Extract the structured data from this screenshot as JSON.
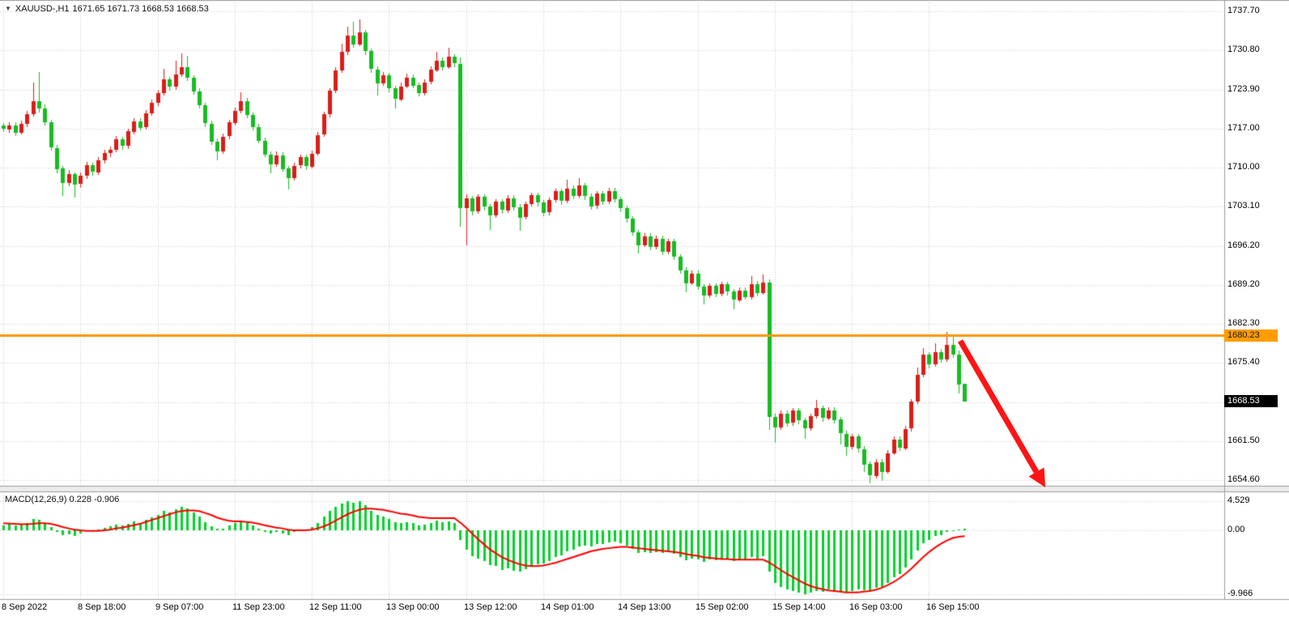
{
  "header": {
    "dropdown_icon": "▼",
    "symbol_timeframe": "XAUUSD-,H1",
    "ohlc_values": "1671.65 1671.73 1668.53 1668.53"
  },
  "chart_data": {
    "type": "candlestick",
    "symbol": "XAUUSD-",
    "timeframe": "H1",
    "title": "XAUUSD-,H1 1671.65 1671.73 1668.53 1668.53",
    "current_price": "1668.53",
    "price_axis": {
      "labels": [
        "1737.70",
        "1730.80",
        "1723.90",
        "1717.00",
        "1710.00",
        "1703.10",
        "1696.20",
        "1689.20",
        "1682.30",
        "1675.40",
        null,
        "1661.50",
        "1654.60"
      ],
      "max": 1739.7,
      "min": 1652.5,
      "step": 6.9
    },
    "time_axis": {
      "labels": [
        "8 Sep 2022",
        "8 Sep 18:00",
        "9 Sep 07:00",
        "11 Sep 23:00",
        "12 Sep 11:00",
        "13 Sep 00:00",
        "13 Sep 12:00",
        "14 Sep 01:00",
        "14 Sep 13:00",
        "15 Sep 02:00",
        "15 Sep 14:00",
        "16 Sep 03:00",
        "16 Sep 15:00"
      ]
    },
    "hline": {
      "price": 1680.23,
      "label": "1680.23",
      "color": "#ff9c00"
    },
    "colors": {
      "bull": "#d91e18",
      "bear": "#18bb22",
      "grid": "#c9c9c9",
      "border": "#9c9c9c",
      "separator": "#ececec",
      "badge_bg": "#000000"
    },
    "candles": [
      [
        1717.4,
        1717.9,
        1716.3,
        1716.8
      ],
      [
        1716.8,
        1718.1,
        1716.3,
        1717.5
      ],
      [
        1717.5,
        1718.0,
        1715.6,
        1716.2
      ],
      [
        1716.2,
        1718.3,
        1715.8,
        1717.8
      ],
      [
        1717.8,
        1720.1,
        1717.3,
        1719.5
      ],
      [
        1719.5,
        1725.0,
        1719.0,
        1721.8
      ],
      [
        1721.8,
        1727.0,
        1719.8,
        1720.5
      ],
      [
        1720.5,
        1721.2,
        1717.4,
        1718.0
      ],
      [
        1718.0,
        1718.5,
        1713.0,
        1713.5
      ],
      [
        1713.5,
        1714.0,
        1709.0,
        1709.8
      ],
      [
        1709.8,
        1710.3,
        1705.0,
        1707.2
      ],
      [
        1707.2,
        1709.5,
        1706.6,
        1708.8
      ],
      [
        1708.8,
        1709.2,
        1704.8,
        1707.0
      ],
      [
        1707.0,
        1709.1,
        1706.4,
        1708.5
      ],
      [
        1708.5,
        1711.0,
        1708.0,
        1710.4
      ],
      [
        1710.4,
        1710.9,
        1708.6,
        1709.2
      ],
      [
        1709.2,
        1711.9,
        1708.8,
        1711.3
      ],
      [
        1711.3,
        1713.2,
        1710.8,
        1712.6
      ],
      [
        1712.6,
        1713.8,
        1712.0,
        1713.2
      ],
      [
        1713.2,
        1715.6,
        1712.7,
        1715.0
      ],
      [
        1715.0,
        1715.5,
        1713.2,
        1713.8
      ],
      [
        1713.8,
        1716.9,
        1713.3,
        1716.4
      ],
      [
        1716.4,
        1718.8,
        1715.9,
        1718.2
      ],
      [
        1718.2,
        1718.7,
        1716.5,
        1717.1
      ],
      [
        1717.1,
        1720.2,
        1716.7,
        1719.6
      ],
      [
        1719.6,
        1722.0,
        1719.1,
        1721.5
      ],
      [
        1721.5,
        1723.8,
        1721.0,
        1723.2
      ],
      [
        1723.2,
        1727.5,
        1722.8,
        1725.6
      ],
      [
        1725.6,
        1726.1,
        1723.7,
        1724.3
      ],
      [
        1724.3,
        1729.0,
        1723.9,
        1726.5
      ],
      [
        1726.5,
        1730.2,
        1726.0,
        1727.8
      ],
      [
        1727.8,
        1729.8,
        1725.3,
        1725.9
      ],
      [
        1725.9,
        1726.4,
        1722.9,
        1723.5
      ],
      [
        1723.5,
        1724.0,
        1720.4,
        1721.0
      ],
      [
        1721.0,
        1721.5,
        1717.2,
        1717.8
      ],
      [
        1717.8,
        1718.3,
        1714.0,
        1714.6
      ],
      [
        1714.6,
        1715.1,
        1711.2,
        1712.9
      ],
      [
        1712.9,
        1716.0,
        1712.4,
        1715.5
      ],
      [
        1715.5,
        1718.5,
        1715.0,
        1718.0
      ],
      [
        1718.0,
        1720.6,
        1717.5,
        1720.1
      ],
      [
        1720.1,
        1723.4,
        1719.7,
        1721.8
      ],
      [
        1721.8,
        1722.3,
        1718.7,
        1719.3
      ],
      [
        1719.3,
        1719.8,
        1716.6,
        1717.2
      ],
      [
        1717.2,
        1717.7,
        1714.2,
        1714.8
      ],
      [
        1714.8,
        1715.3,
        1711.8,
        1712.3
      ],
      [
        1712.3,
        1712.8,
        1708.9,
        1710.6
      ],
      [
        1710.6,
        1712.8,
        1710.1,
        1712.2
      ],
      [
        1712.2,
        1712.7,
        1709.2,
        1709.8
      ],
      [
        1709.8,
        1710.3,
        1706.2,
        1708.1
      ],
      [
        1708.1,
        1710.8,
        1707.7,
        1710.3
      ],
      [
        1710.3,
        1712.3,
        1709.9,
        1711.8
      ],
      [
        1711.8,
        1712.3,
        1709.6,
        1710.2
      ],
      [
        1710.2,
        1713.0,
        1709.8,
        1712.5
      ],
      [
        1712.5,
        1716.3,
        1712.1,
        1715.8
      ],
      [
        1715.8,
        1719.9,
        1715.4,
        1719.4
      ],
      [
        1719.4,
        1724.1,
        1719.0,
        1723.6
      ],
      [
        1723.6,
        1727.8,
        1723.2,
        1727.2
      ],
      [
        1727.2,
        1732.0,
        1726.8,
        1730.5
      ],
      [
        1730.5,
        1735.0,
        1730.0,
        1733.4
      ],
      [
        1733.4,
        1735.8,
        1731.2,
        1731.8
      ],
      [
        1731.8,
        1736.2,
        1731.4,
        1733.9
      ],
      [
        1733.9,
        1734.4,
        1730.0,
        1730.6
      ],
      [
        1730.6,
        1731.1,
        1726.8,
        1727.4
      ],
      [
        1727.4,
        1727.9,
        1722.8,
        1724.9
      ],
      [
        1724.9,
        1726.9,
        1724.4,
        1726.3
      ],
      [
        1726.3,
        1726.8,
        1723.4,
        1724.0
      ],
      [
        1724.0,
        1724.5,
        1720.5,
        1722.1
      ],
      [
        1722.1,
        1725.0,
        1721.7,
        1724.4
      ],
      [
        1724.4,
        1726.6,
        1724.0,
        1726.0
      ],
      [
        1726.0,
        1726.5,
        1724.0,
        1724.6
      ],
      [
        1724.6,
        1725.1,
        1722.6,
        1723.2
      ],
      [
        1723.2,
        1725.7,
        1722.8,
        1725.1
      ],
      [
        1725.1,
        1727.9,
        1724.7,
        1727.3
      ],
      [
        1727.3,
        1730.5,
        1726.9,
        1729.0
      ],
      [
        1729.0,
        1729.5,
        1727.2,
        1727.8
      ],
      [
        1727.8,
        1731.2,
        1727.4,
        1729.6
      ],
      [
        1729.6,
        1730.1,
        1727.8,
        1728.4
      ],
      [
        1728.4,
        1729.5,
        1699.5,
        1702.8
      ],
      [
        1702.8,
        1705.2,
        1696.2,
        1704.5
      ],
      [
        1704.5,
        1705.0,
        1701.5,
        1702.2
      ],
      [
        1702.2,
        1705.3,
        1701.8,
        1704.8
      ],
      [
        1704.8,
        1705.3,
        1702.5,
        1703.1
      ],
      [
        1703.1,
        1703.6,
        1699.0,
        1701.5
      ],
      [
        1701.5,
        1704.4,
        1701.1,
        1703.9
      ],
      [
        1703.9,
        1704.4,
        1701.8,
        1702.4
      ],
      [
        1702.4,
        1705.1,
        1702.0,
        1704.6
      ],
      [
        1704.6,
        1705.1,
        1702.4,
        1703.0
      ],
      [
        1703.0,
        1703.5,
        1698.8,
        1701.2
      ],
      [
        1701.2,
        1704.0,
        1700.8,
        1703.5
      ],
      [
        1703.5,
        1705.6,
        1703.1,
        1705.1
      ],
      [
        1705.1,
        1705.6,
        1703.2,
        1703.8
      ],
      [
        1703.8,
        1704.3,
        1701.4,
        1702.0
      ],
      [
        1702.0,
        1704.7,
        1701.6,
        1704.2
      ],
      [
        1704.2,
        1706.3,
        1703.8,
        1705.8
      ],
      [
        1705.8,
        1706.3,
        1703.5,
        1704.1
      ],
      [
        1704.1,
        1707.8,
        1703.7,
        1706.3
      ],
      [
        1706.3,
        1706.8,
        1704.4,
        1705.0
      ],
      [
        1705.0,
        1708.2,
        1704.6,
        1706.8
      ],
      [
        1706.8,
        1707.3,
        1704.3,
        1704.9
      ],
      [
        1704.9,
        1705.4,
        1702.6,
        1703.2
      ],
      [
        1703.2,
        1705.9,
        1702.8,
        1705.4
      ],
      [
        1705.4,
        1705.9,
        1703.4,
        1704.0
      ],
      [
        1704.0,
        1706.4,
        1703.6,
        1705.9
      ],
      [
        1705.9,
        1706.4,
        1703.8,
        1704.4
      ],
      [
        1704.4,
        1704.9,
        1702.2,
        1702.8
      ],
      [
        1702.8,
        1703.3,
        1700.3,
        1700.9
      ],
      [
        1700.9,
        1701.4,
        1697.9,
        1698.5
      ],
      [
        1698.5,
        1699.0,
        1694.8,
        1696.2
      ],
      [
        1696.2,
        1698.3,
        1695.8,
        1697.8
      ],
      [
        1697.8,
        1698.3,
        1695.3,
        1695.9
      ],
      [
        1695.9,
        1697.9,
        1695.5,
        1697.4
      ],
      [
        1697.4,
        1697.9,
        1694.5,
        1695.1
      ],
      [
        1695.1,
        1697.4,
        1694.7,
        1696.9
      ],
      [
        1696.9,
        1697.4,
        1693.6,
        1694.2
      ],
      [
        1694.2,
        1694.7,
        1691.2,
        1691.8
      ],
      [
        1691.8,
        1692.3,
        1687.9,
        1689.5
      ],
      [
        1689.5,
        1691.7,
        1689.1,
        1691.2
      ],
      [
        1691.2,
        1691.7,
        1688.3,
        1688.9
      ],
      [
        1688.9,
        1689.4,
        1685.8,
        1687.3
      ],
      [
        1687.3,
        1689.5,
        1686.9,
        1689.0
      ],
      [
        1689.0,
        1689.5,
        1687.0,
        1687.6
      ],
      [
        1687.6,
        1689.8,
        1687.2,
        1689.3
      ],
      [
        1689.3,
        1689.8,
        1687.4,
        1688.0
      ],
      [
        1688.0,
        1688.5,
        1684.9,
        1686.5
      ],
      [
        1686.5,
        1688.7,
        1686.1,
        1688.2
      ],
      [
        1688.2,
        1688.7,
        1686.5,
        1687.1
      ],
      [
        1687.1,
        1690.8,
        1686.7,
        1689.4
      ],
      [
        1689.4,
        1689.9,
        1687.2,
        1687.8
      ],
      [
        1687.8,
        1691.0,
        1687.4,
        1689.6
      ],
      [
        1689.6,
        1690.2,
        1663.5,
        1665.8
      ],
      [
        1665.8,
        1666.3,
        1661.2,
        1663.9
      ],
      [
        1663.9,
        1667.0,
        1663.5,
        1666.4
      ],
      [
        1666.4,
        1666.9,
        1664.1,
        1664.7
      ],
      [
        1664.7,
        1667.4,
        1664.3,
        1666.9
      ],
      [
        1666.9,
        1667.4,
        1664.6,
        1665.2
      ],
      [
        1665.2,
        1665.7,
        1662.0,
        1663.8
      ],
      [
        1663.8,
        1666.4,
        1663.4,
        1665.9
      ],
      [
        1665.9,
        1668.8,
        1665.5,
        1667.3
      ],
      [
        1667.3,
        1667.8,
        1665.0,
        1665.6
      ],
      [
        1665.6,
        1667.5,
        1665.2,
        1667.0
      ],
      [
        1667.0,
        1667.5,
        1664.7,
        1665.3
      ],
      [
        1665.3,
        1665.8,
        1660.9,
        1662.8
      ],
      [
        1662.8,
        1663.3,
        1658.8,
        1660.5
      ],
      [
        1660.5,
        1662.8,
        1660.1,
        1662.3
      ],
      [
        1662.3,
        1662.8,
        1659.5,
        1660.1
      ],
      [
        1660.1,
        1660.6,
        1656.0,
        1657.4
      ],
      [
        1657.4,
        1657.9,
        1654.0,
        1655.4
      ],
      [
        1655.4,
        1658.3,
        1654.8,
        1657.8
      ],
      [
        1657.8,
        1658.3,
        1654.4,
        1656.1
      ],
      [
        1656.1,
        1659.9,
        1655.7,
        1659.4
      ],
      [
        1659.4,
        1662.3,
        1659.0,
        1661.8
      ],
      [
        1661.8,
        1662.3,
        1659.7,
        1660.3
      ],
      [
        1660.3,
        1664.2,
        1659.9,
        1663.7
      ],
      [
        1663.7,
        1669.0,
        1663.3,
        1668.5
      ],
      [
        1668.5,
        1674.5,
        1668.1,
        1673.2
      ],
      [
        1673.2,
        1678.0,
        1672.8,
        1676.8
      ],
      [
        1676.8,
        1677.3,
        1674.5,
        1675.1
      ],
      [
        1675.1,
        1678.9,
        1674.7,
        1677.3
      ],
      [
        1677.3,
        1677.8,
        1675.4,
        1676.0
      ],
      [
        1676.0,
        1680.9,
        1675.6,
        1678.6
      ],
      [
        1678.6,
        1680.2,
        1676.3,
        1676.9
      ],
      [
        1676.9,
        1677.5,
        1669.9,
        1671.65
      ],
      [
        1671.65,
        1671.73,
        1668.53,
        1668.53
      ]
    ],
    "macd": {
      "label": "MACD(12,26,9) 0.228 -0.906",
      "scale_labels": [
        "4.529",
        "0.00",
        "-9.966"
      ],
      "scale_values": [
        4.529,
        0,
        -9.966
      ],
      "hist_color": "#00d22a",
      "signal_color": "#ff0000",
      "histogram": [
        0.8,
        1.0,
        0.7,
        0.9,
        1.2,
        1.8,
        1.6,
        1.2,
        0.5,
        -0.2,
        -0.8,
        -0.6,
        -0.9,
        -0.5,
        -0.1,
        -0.3,
        0.1,
        0.4,
        0.6,
        0.9,
        0.7,
        1.0,
        1.4,
        1.2,
        1.6,
        2.0,
        2.4,
        3.0,
        2.8,
        3.3,
        3.7,
        3.4,
        2.8,
        2.1,
        1.3,
        0.6,
        0.2,
        0.3,
        0.7,
        1.1,
        1.4,
        1.1,
        0.7,
        0.2,
        -0.2,
        -0.5,
        -0.3,
        -0.5,
        -0.7,
        -0.3,
        0.0,
        0.1,
        0.5,
        1.2,
        2.1,
        3.0,
        3.7,
        4.2,
        4.5,
        4.3,
        4.529,
        3.9,
        3.1,
        2.4,
        2.2,
        1.8,
        1.3,
        1.2,
        1.3,
        1.1,
        0.8,
        0.9,
        1.2,
        1.5,
        1.3,
        1.4,
        1.1,
        -1.5,
        -3.0,
        -4.0,
        -4.4,
        -4.8,
        -5.4,
        -5.6,
        -6.2,
        -6.0,
        -6.3,
        -6.5,
        -6.1,
        -5.6,
        -5.3,
        -5.2,
        -4.8,
        -4.2,
        -3.9,
        -3.3,
        -3.0,
        -2.5,
        -2.4,
        -2.5,
        -2.2,
        -2.1,
        -1.9,
        -1.8,
        -2.0,
        -2.4,
        -2.9,
        -3.5,
        -3.4,
        -3.6,
        -3.4,
        -3.6,
        -3.4,
        -3.7,
        -4.2,
        -4.7,
        -4.4,
        -4.6,
        -4.9,
        -4.6,
        -4.7,
        -4.4,
        -4.5,
        -4.8,
        -4.5,
        -4.6,
        -4.2,
        -4.4,
        -4.1,
        -6.5,
        -8.2,
        -8.8,
        -9.3,
        -9.5,
        -9.7,
        -9.966,
        -9.8,
        -9.5,
        -9.6,
        -9.3,
        -9.4,
        -9.6,
        -9.8,
        -9.5,
        -9.2,
        -9.4,
        -9.6,
        -9.0,
        -8.8,
        -8.2,
        -7.4,
        -6.8,
        -5.8,
        -4.5,
        -3.2,
        -2.0,
        -1.5,
        -0.9,
        -0.7,
        -0.3,
        -0.1,
        0.1,
        0.228
      ],
      "signal": [
        1.1,
        1.05,
        1.0,
        0.95,
        0.95,
        1.0,
        1.1,
        1.1,
        1.0,
        0.8,
        0.5,
        0.3,
        0.1,
        0.0,
        -0.1,
        -0.1,
        -0.1,
        0.0,
        0.1,
        0.3,
        0.4,
        0.6,
        0.8,
        1.0,
        1.3,
        1.6,
        1.9,
        2.2,
        2.5,
        2.8,
        3.0,
        3.1,
        3.1,
        3.0,
        2.7,
        2.4,
        2.0,
        1.7,
        1.5,
        1.4,
        1.4,
        1.3,
        1.2,
        1.0,
        0.8,
        0.6,
        0.4,
        0.3,
        0.1,
        0.0,
        0.0,
        0.0,
        0.1,
        0.3,
        0.6,
        1.0,
        1.5,
        2.0,
        2.5,
        2.9,
        3.2,
        3.4,
        3.4,
        3.3,
        3.2,
        3.0,
        2.8,
        2.6,
        2.5,
        2.3,
        2.1,
        2.0,
        1.9,
        1.9,
        1.9,
        1.9,
        1.9,
        1.2,
        0.4,
        -0.5,
        -1.4,
        -2.2,
        -3.0,
        -3.6,
        -4.2,
        -4.6,
        -5.0,
        -5.3,
        -5.5,
        -5.6,
        -5.6,
        -5.5,
        -5.3,
        -5.1,
        -4.8,
        -4.5,
        -4.2,
        -3.9,
        -3.6,
        -3.3,
        -3.1,
        -2.9,
        -2.8,
        -2.7,
        -2.6,
        -2.6,
        -2.7,
        -2.8,
        -2.9,
        -3.0,
        -3.1,
        -3.2,
        -3.3,
        -3.4,
        -3.5,
        -3.7,
        -3.9,
        -4.0,
        -4.2,
        -4.3,
        -4.4,
        -4.5,
        -4.5,
        -4.6,
        -4.6,
        -4.6,
        -4.6,
        -4.6,
        -4.6,
        -5.0,
        -5.6,
        -6.2,
        -6.8,
        -7.3,
        -7.8,
        -8.3,
        -8.7,
        -9.0,
        -9.2,
        -9.4,
        -9.5,
        -9.6,
        -9.7,
        -9.7,
        -9.7,
        -9.6,
        -9.5,
        -9.3,
        -9.0,
        -8.6,
        -8.1,
        -7.5,
        -6.8,
        -6.0,
        -5.1,
        -4.2,
        -3.4,
        -2.7,
        -2.1,
        -1.6,
        -1.2,
        -1.0,
        -0.906
      ]
    }
  },
  "annotation_arrow": {
    "from": [
      1186,
      421
    ],
    "to": [
      1280,
      583
    ],
    "color": "#ff1414"
  }
}
